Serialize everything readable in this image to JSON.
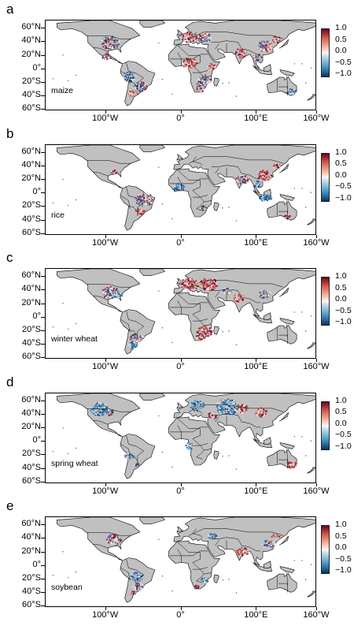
{
  "lat_labels": [
    "60°N",
    "40°N",
    "20°N",
    "0°",
    "20°S",
    "40°S",
    "60°S"
  ],
  "lon_labels": [
    "100°W",
    "0°",
    "100°E",
    "160°W"
  ],
  "colorbar_labels": [
    "1.0",
    "0.5",
    "0.0",
    "−0.5",
    "−1.0"
  ],
  "colors": {
    "land": "#c0c0c0",
    "positive": "#c8102e",
    "negative": "#2c65b0",
    "neutral": "#f2f2f2"
  },
  "panels": [
    {
      "letter": "a",
      "crop": "maize"
    },
    {
      "letter": "b",
      "crop": "rice"
    },
    {
      "letter": "c",
      "crop": "winter wheat"
    },
    {
      "letter": "d",
      "crop": "spring wheat"
    },
    {
      "letter": "e",
      "crop": "soybean"
    }
  ]
}
